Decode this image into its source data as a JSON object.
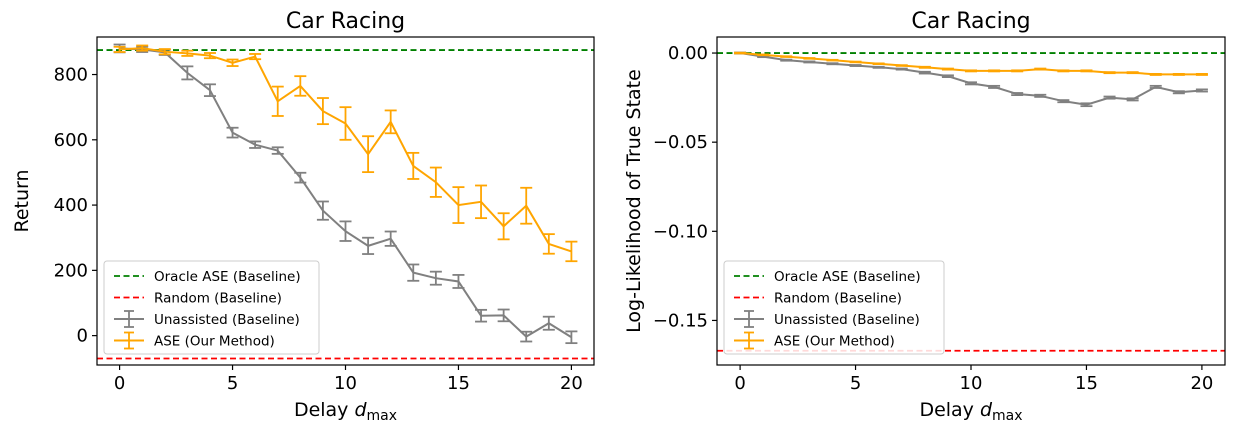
{
  "chart_data": [
    {
      "type": "line",
      "title": "Car Racing",
      "xlabel": "Delay",
      "xlabel_sym": "d",
      "xlabel_sub": "max",
      "ylabel": "Return",
      "xlim": [
        -1,
        21
      ],
      "ylim": [
        -90,
        915
      ],
      "xticks": [
        0,
        5,
        10,
        15,
        20
      ],
      "xtick_labels": [
        "0",
        "5",
        "10",
        "15",
        "20"
      ],
      "yticks": [
        0,
        200,
        400,
        600,
        800
      ],
      "ytick_labels": [
        "0",
        "200",
        "400",
        "600",
        "800"
      ],
      "legend_position": "lower-left",
      "grid": false,
      "series": [
        {
          "name": "Oracle ASE (Baseline)",
          "kind": "hline",
          "value": 875,
          "color": "#008000",
          "dash": true
        },
        {
          "name": "Random (Baseline)",
          "kind": "hline",
          "value": -70,
          "color": "#ff0000",
          "dash": true
        },
        {
          "name": "Unassisted (Baseline)",
          "kind": "errorbar",
          "color": "#808080",
          "x": [
            0,
            1,
            2,
            3,
            4,
            5,
            6,
            7,
            8,
            9,
            10,
            11,
            12,
            13,
            14,
            15,
            16,
            17,
            18,
            19,
            20
          ],
          "y": [
            880,
            877,
            868,
            805,
            752,
            622,
            585,
            567,
            484,
            383,
            320,
            275,
            297,
            193,
            176,
            166,
            61,
            62,
            -3,
            38,
            -5
          ],
          "err": [
            12,
            8,
            8,
            20,
            18,
            15,
            10,
            10,
            15,
            28,
            30,
            25,
            22,
            25,
            20,
            20,
            18,
            18,
            15,
            20,
            18
          ]
        },
        {
          "name": "ASE (Our Method)",
          "kind": "errorbar",
          "color": "#ffa500",
          "x": [
            0,
            1,
            2,
            3,
            4,
            5,
            6,
            7,
            8,
            9,
            10,
            11,
            12,
            13,
            14,
            15,
            16,
            17,
            18,
            19,
            20
          ],
          "y": [
            877,
            881,
            870,
            865,
            858,
            836,
            855,
            718,
            765,
            688,
            650,
            556,
            655,
            520,
            470,
            400,
            410,
            335,
            398,
            281,
            258
          ],
          "err": [
            8,
            8,
            8,
            8,
            8,
            10,
            8,
            45,
            30,
            40,
            50,
            55,
            35,
            40,
            45,
            55,
            50,
            40,
            55,
            30,
            30
          ]
        }
      ]
    },
    {
      "type": "line",
      "title": "Car Racing",
      "xlabel": "Delay",
      "xlabel_sym": "d",
      "xlabel_sub": "max",
      "ylabel": "Log-Likelihood of True State",
      "xlim": [
        -1,
        21
      ],
      "ylim": [
        -0.175,
        0.009
      ],
      "xticks": [
        0,
        5,
        10,
        15,
        20
      ],
      "xtick_labels": [
        "0",
        "5",
        "10",
        "15",
        "20"
      ],
      "yticks": [
        0.0,
        -0.05,
        -0.1,
        -0.15
      ],
      "ytick_labels": [
        "0.00",
        "−0.05",
        "−0.10",
        "−0.15"
      ],
      "legend_position": "lower-left",
      "grid": false,
      "series": [
        {
          "name": "Oracle ASE (Baseline)",
          "kind": "hline",
          "value": 0.0,
          "color": "#008000",
          "dash": true
        },
        {
          "name": "Random (Baseline)",
          "kind": "hline",
          "value": -0.167,
          "color": "#ff0000",
          "dash": true
        },
        {
          "name": "Unassisted (Baseline)",
          "kind": "errorbar",
          "color": "#808080",
          "x": [
            0,
            1,
            2,
            3,
            4,
            5,
            6,
            7,
            8,
            9,
            10,
            11,
            12,
            13,
            14,
            15,
            16,
            17,
            18,
            19,
            20
          ],
          "y": [
            0,
            -0.002,
            -0.004,
            -0.005,
            -0.006,
            -0.007,
            -0.008,
            -0.009,
            -0.011,
            -0.013,
            -0.017,
            -0.019,
            -0.023,
            -0.024,
            -0.027,
            -0.029,
            -0.025,
            -0.026,
            -0.019,
            -0.022,
            -0.021
          ],
          "err": [
            0.0003,
            0.0003,
            0.0003,
            0.0003,
            0.0003,
            0.0003,
            0.0003,
            0.0003,
            0.0005,
            0.0005,
            0.0006,
            0.0006,
            0.0006,
            0.0006,
            0.0006,
            0.0008,
            0.0006,
            0.0006,
            0.0006,
            0.0006,
            0.0006
          ]
        },
        {
          "name": "ASE (Our Method)",
          "kind": "errorbar",
          "color": "#ffa500",
          "x": [
            0,
            1,
            2,
            3,
            4,
            5,
            6,
            7,
            8,
            9,
            10,
            11,
            12,
            13,
            14,
            15,
            16,
            17,
            18,
            19,
            20
          ],
          "y": [
            0,
            -0.001,
            -0.002,
            -0.003,
            -0.004,
            -0.005,
            -0.006,
            -0.007,
            -0.008,
            -0.009,
            -0.01,
            -0.01,
            -0.01,
            -0.009,
            -0.01,
            -0.01,
            -0.011,
            -0.011,
            -0.012,
            -0.012,
            -0.012
          ],
          "err": [
            0.0002,
            0.0002,
            0.0002,
            0.0002,
            0.0002,
            0.0002,
            0.0002,
            0.0002,
            0.0003,
            0.0003,
            0.0003,
            0.0003,
            0.0003,
            0.0003,
            0.0003,
            0.0003,
            0.0003,
            0.0003,
            0.0003,
            0.0003,
            0.0003
          ]
        }
      ]
    }
  ]
}
